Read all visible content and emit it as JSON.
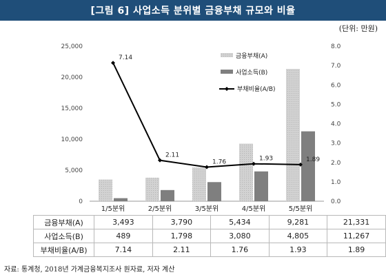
{
  "title": "[그림 6] 사업소득 분위별 금융부채 규모와 비율",
  "unit": "(단위: 만원)",
  "source": "자료: 통계청, 2018년 가계금융복지조사 원자료, 저자 계산",
  "colors": {
    "title_bg": "#1f4e79",
    "debt_bar": "#c9c9c9",
    "income_bar": "#7f7f7f",
    "ratio_line": "#000000"
  },
  "chart_data": {
    "type": "bar",
    "categories": [
      "1/5분위",
      "2/5분위",
      "3/5분위",
      "4/5분위",
      "5/5분위"
    ],
    "series": [
      {
        "name": "금융부채(A)",
        "type": "bar",
        "axis": "left",
        "values": [
          3493,
          3790,
          5434,
          9281,
          21331
        ]
      },
      {
        "name": "사업소득(B)",
        "type": "bar",
        "axis": "left",
        "values": [
          489,
          1798,
          3080,
          4805,
          11267
        ]
      },
      {
        "name": "부채비율(A/B)",
        "type": "line",
        "axis": "right",
        "values": [
          7.14,
          2.11,
          1.76,
          1.93,
          1.89
        ]
      }
    ],
    "ratio_labels": [
      "7.14",
      "2.11",
      "1.76",
      "1.93",
      "1.89"
    ],
    "left_axis": {
      "ylim": [
        0,
        25000
      ],
      "ticks": [
        "0",
        "5,000",
        "10,000",
        "15,000",
        "20,000",
        "25,000"
      ]
    },
    "right_axis": {
      "ylim": [
        0,
        8
      ],
      "ticks": [
        "0.0",
        "1.0",
        "2.0",
        "3.0",
        "4.0",
        "5.0",
        "6.0",
        "7.0",
        "8.0"
      ]
    },
    "legend_position": "top-right",
    "grid": false
  },
  "table": {
    "rows": [
      {
        "label": "금융부채(A)",
        "values": [
          "3,493",
          "3,790",
          "5,434",
          "9,281",
          "21,331"
        ]
      },
      {
        "label": "사업소득(B)",
        "values": [
          "489",
          "1,798",
          "3,080",
          "4,805",
          "11,267"
        ]
      },
      {
        "label": "부채비율(A/B)",
        "values": [
          "7.14",
          "2.11",
          "1.76",
          "1.93",
          "1.89"
        ]
      }
    ]
  }
}
